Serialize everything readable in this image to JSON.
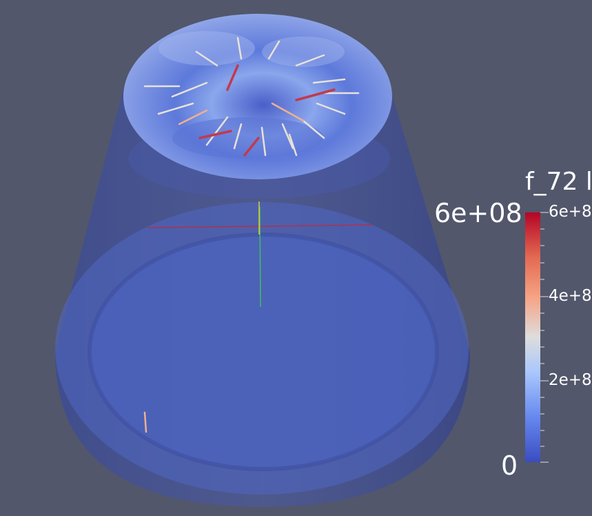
{
  "colorbar": {
    "title": "f_72 l",
    "range_max_label": "6e+08",
    "range_min_label": "0",
    "tick_labels": [
      "6e+8",
      "4e+8",
      "2e+8"
    ],
    "colormap": "cool-to-warm",
    "colors": [
      "#3b4cc0",
      "#6688ee",
      "#aac7fd",
      "#dddddd",
      "#f6a385",
      "#e36a53",
      "#b40426"
    ]
  },
  "scene": {
    "background": "#52576b",
    "object": "truncated-cone",
    "glyphs": "arrows"
  }
}
